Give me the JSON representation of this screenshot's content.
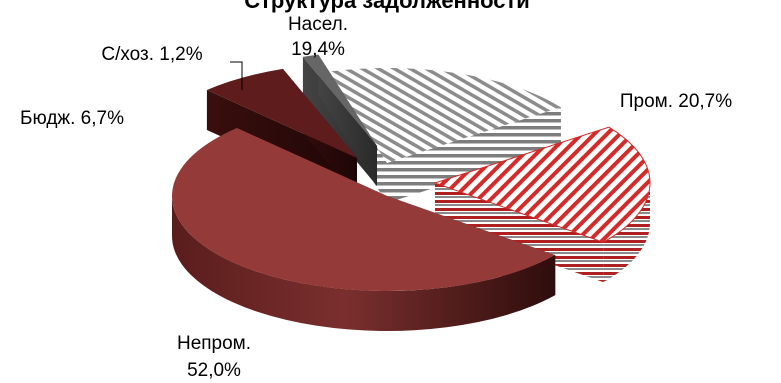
{
  "chart_data": {
    "type": "pie",
    "style": "3d-exploded",
    "title": "Структура задолженности",
    "slices": [
      {
        "label": "Пром.",
        "value_text": "20,7%",
        "value": 20.7,
        "color": "#d42a2a",
        "pattern": "red-hatch"
      },
      {
        "label": "Непром.",
        "value_text": "52,0%",
        "value": 52.0,
        "color": "#8f3b39",
        "pattern": "solid"
      },
      {
        "label": "Бюдж.",
        "value_text": "6,7%",
        "value": 6.7,
        "color": "#5e1c1c",
        "pattern": "solid"
      },
      {
        "label": "С/хоз.",
        "value_text": "1,2%",
        "value": 1.2,
        "color": "#5f5f5f",
        "pattern": "solid"
      },
      {
        "label": "Насел.",
        "value_text": "19,4%",
        "value": 19.4,
        "color": "#9a9a9a",
        "pattern": "gray-hatch"
      }
    ],
    "legend": "none",
    "data_labels": "outside"
  }
}
